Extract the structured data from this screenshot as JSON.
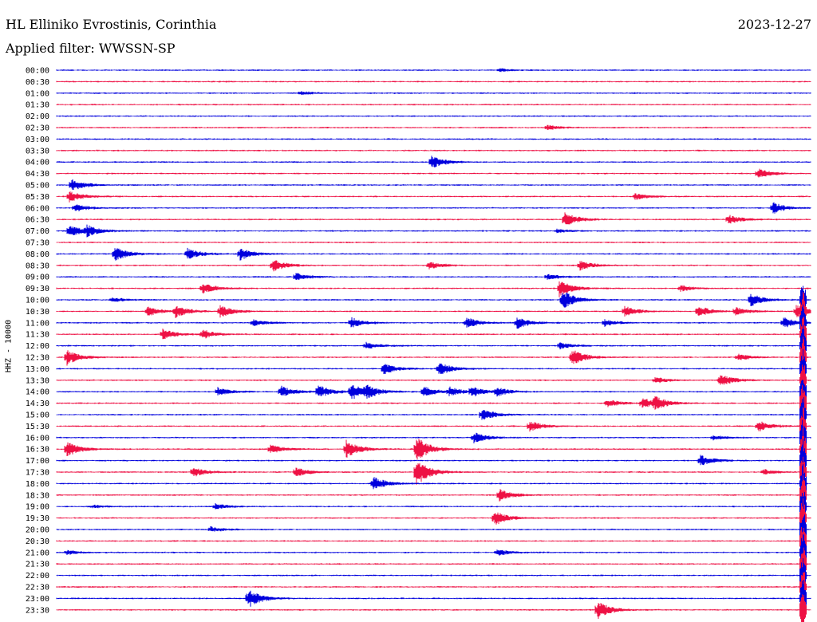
{
  "header": {
    "station": "HL Elliniko Evrostinis, Corinthia",
    "date": "2023-12-27",
    "filter": "Applied filter: WWSSN-SP"
  },
  "colors": {
    "even_trace": "#0000dd",
    "odd_trace": "#ee1144",
    "background": "#ffffff"
  },
  "chart_data": {
    "type": "line",
    "title": "HL Elliniko Evrostinis, Corinthia",
    "ylabel": "HHZ - 10000",
    "xlabel": "",
    "grid": false,
    "rows": [
      "00:00",
      "00:30",
      "01:00",
      "01:30",
      "02:00",
      "02:30",
      "03:00",
      "03:30",
      "04:00",
      "04:30",
      "05:00",
      "05:30",
      "06:00",
      "06:30",
      "07:00",
      "07:30",
      "08:00",
      "08:30",
      "09:00",
      "09:30",
      "10:00",
      "10:30",
      "11:00",
      "11:30",
      "12:00",
      "12:30",
      "13:00",
      "13:30",
      "14:00",
      "14:30",
      "15:00",
      "15:30",
      "16:00",
      "16:30",
      "17:00",
      "17:30",
      "18:00",
      "18:30",
      "19:00",
      "19:30",
      "20:00",
      "20:30",
      "21:00",
      "21:30",
      "22:00",
      "22:30",
      "23:00",
      "23:30"
    ],
    "row_duration_minutes": 30,
    "trace_colors": [
      "blue",
      "red"
    ],
    "events": [
      {
        "row": 0,
        "minute": 17.6,
        "amp": 0.25
      },
      {
        "row": 2,
        "minute": 9.7,
        "amp": 0.3
      },
      {
        "row": 5,
        "minute": 19.5,
        "amp": 0.4
      },
      {
        "row": 8,
        "minute": 14.9,
        "amp": 1.2
      },
      {
        "row": 9,
        "minute": 27.9,
        "amp": 0.9
      },
      {
        "row": 10,
        "minute": 0.6,
        "amp": 1.1
      },
      {
        "row": 11,
        "minute": 0.5,
        "amp": 1.0
      },
      {
        "row": 11,
        "minute": 23.0,
        "amp": 0.6
      },
      {
        "row": 12,
        "minute": 0.7,
        "amp": 0.7
      },
      {
        "row": 12,
        "minute": 28.5,
        "amp": 1.0
      },
      {
        "row": 13,
        "minute": 20.2,
        "amp": 1.4
      },
      {
        "row": 13,
        "minute": 26.7,
        "amp": 0.9
      },
      {
        "row": 14,
        "minute": 0.5,
        "amp": 1.1
      },
      {
        "row": 14,
        "minute": 1.2,
        "amp": 0.9
      },
      {
        "row": 14,
        "minute": 19.9,
        "amp": 0.3
      },
      {
        "row": 16,
        "minute": 2.3,
        "amp": 1.5
      },
      {
        "row": 16,
        "minute": 5.2,
        "amp": 1.0
      },
      {
        "row": 16,
        "minute": 7.3,
        "amp": 1.1
      },
      {
        "row": 17,
        "minute": 8.6,
        "amp": 1.1
      },
      {
        "row": 17,
        "minute": 14.8,
        "amp": 0.7
      },
      {
        "row": 17,
        "minute": 20.8,
        "amp": 0.9
      },
      {
        "row": 18,
        "minute": 9.5,
        "amp": 0.7
      },
      {
        "row": 18,
        "minute": 19.5,
        "amp": 0.5
      },
      {
        "row": 19,
        "minute": 5.8,
        "amp": 1.0
      },
      {
        "row": 19,
        "minute": 20.0,
        "amp": 1.6
      },
      {
        "row": 19,
        "minute": 24.8,
        "amp": 0.6
      },
      {
        "row": 20,
        "minute": 2.2,
        "amp": 0.4
      },
      {
        "row": 20,
        "minute": 20.1,
        "amp": 1.8
      },
      {
        "row": 20,
        "minute": 27.6,
        "amp": 1.2
      },
      {
        "row": 21,
        "minute": 3.6,
        "amp": 0.9
      },
      {
        "row": 21,
        "minute": 4.7,
        "amp": 1.2
      },
      {
        "row": 21,
        "minute": 6.5,
        "amp": 1.1
      },
      {
        "row": 21,
        "minute": 22.6,
        "amp": 0.9
      },
      {
        "row": 21,
        "minute": 25.5,
        "amp": 1.0
      },
      {
        "row": 21,
        "minute": 27.0,
        "amp": 0.8
      },
      {
        "row": 21,
        "minute": 29.4,
        "amp": 1.2
      },
      {
        "row": 22,
        "minute": 7.8,
        "amp": 0.6
      },
      {
        "row": 22,
        "minute": 11.7,
        "amp": 1.0
      },
      {
        "row": 22,
        "minute": 16.3,
        "amp": 1.0
      },
      {
        "row": 22,
        "minute": 18.3,
        "amp": 1.1
      },
      {
        "row": 22,
        "minute": 21.8,
        "amp": 0.6
      },
      {
        "row": 22,
        "minute": 28.9,
        "amp": 1.0
      },
      {
        "row": 23,
        "minute": 4.2,
        "amp": 1.0
      },
      {
        "row": 23,
        "minute": 5.8,
        "amp": 0.8
      },
      {
        "row": 24,
        "minute": 12.3,
        "amp": 0.6
      },
      {
        "row": 24,
        "minute": 20.0,
        "amp": 0.6
      },
      {
        "row": 25,
        "minute": 0.4,
        "amp": 1.4
      },
      {
        "row": 25,
        "minute": 20.5,
        "amp": 1.5
      },
      {
        "row": 25,
        "minute": 27.1,
        "amp": 0.6
      },
      {
        "row": 26,
        "minute": 13.0,
        "amp": 1.0
      },
      {
        "row": 26,
        "minute": 15.2,
        "amp": 1.2
      },
      {
        "row": 27,
        "minute": 23.8,
        "amp": 0.6
      },
      {
        "row": 27,
        "minute": 26.4,
        "amp": 1.2
      },
      {
        "row": 28,
        "minute": 6.4,
        "amp": 0.8
      },
      {
        "row": 28,
        "minute": 8.9,
        "amp": 1.1
      },
      {
        "row": 28,
        "minute": 10.4,
        "amp": 1.2
      },
      {
        "row": 28,
        "minute": 11.7,
        "amp": 1.5
      },
      {
        "row": 28,
        "minute": 12.3,
        "amp": 1.0
      },
      {
        "row": 28,
        "minute": 14.6,
        "amp": 0.9
      },
      {
        "row": 28,
        "minute": 15.6,
        "amp": 0.8
      },
      {
        "row": 28,
        "minute": 16.5,
        "amp": 0.9
      },
      {
        "row": 28,
        "minute": 17.5,
        "amp": 0.8
      },
      {
        "row": 29,
        "minute": 21.9,
        "amp": 0.7
      },
      {
        "row": 29,
        "minute": 23.3,
        "amp": 1.0
      },
      {
        "row": 29,
        "minute": 23.8,
        "amp": 1.0
      },
      {
        "row": 30,
        "minute": 16.9,
        "amp": 1.2
      },
      {
        "row": 31,
        "minute": 18.8,
        "amp": 1.0
      },
      {
        "row": 31,
        "minute": 27.9,
        "amp": 1.0
      },
      {
        "row": 32,
        "minute": 16.6,
        "amp": 1.0
      },
      {
        "row": 32,
        "minute": 26.1,
        "amp": 0.4
      },
      {
        "row": 33,
        "minute": 0.4,
        "amp": 1.5
      },
      {
        "row": 33,
        "minute": 8.5,
        "amp": 0.8
      },
      {
        "row": 33,
        "minute": 11.5,
        "amp": 1.7
      },
      {
        "row": 33,
        "minute": 14.3,
        "amp": 2.5
      },
      {
        "row": 34,
        "minute": 25.6,
        "amp": 1.0
      },
      {
        "row": 35,
        "minute": 5.4,
        "amp": 0.9
      },
      {
        "row": 35,
        "minute": 9.5,
        "amp": 0.9
      },
      {
        "row": 35,
        "minute": 14.3,
        "amp": 2.5
      },
      {
        "row": 35,
        "minute": 28.1,
        "amp": 0.5
      },
      {
        "row": 36,
        "minute": 12.6,
        "amp": 1.3
      },
      {
        "row": 37,
        "minute": 17.6,
        "amp": 1.1
      },
      {
        "row": 38,
        "minute": 1.4,
        "amp": 0.3
      },
      {
        "row": 38,
        "minute": 6.3,
        "amp": 0.5
      },
      {
        "row": 39,
        "minute": 17.4,
        "amp": 1.5
      },
      {
        "row": 40,
        "minute": 6.1,
        "amp": 0.5
      },
      {
        "row": 42,
        "minute": 0.4,
        "amp": 0.4
      },
      {
        "row": 42,
        "minute": 17.5,
        "amp": 0.6
      },
      {
        "row": 46,
        "minute": 7.6,
        "amp": 1.8
      },
      {
        "row": 47,
        "minute": 21.5,
        "amp": 1.8
      }
    ],
    "big_event": {
      "start_row": 20,
      "end_row": 47,
      "minute": 29.7,
      "amp": 4.0
    }
  }
}
